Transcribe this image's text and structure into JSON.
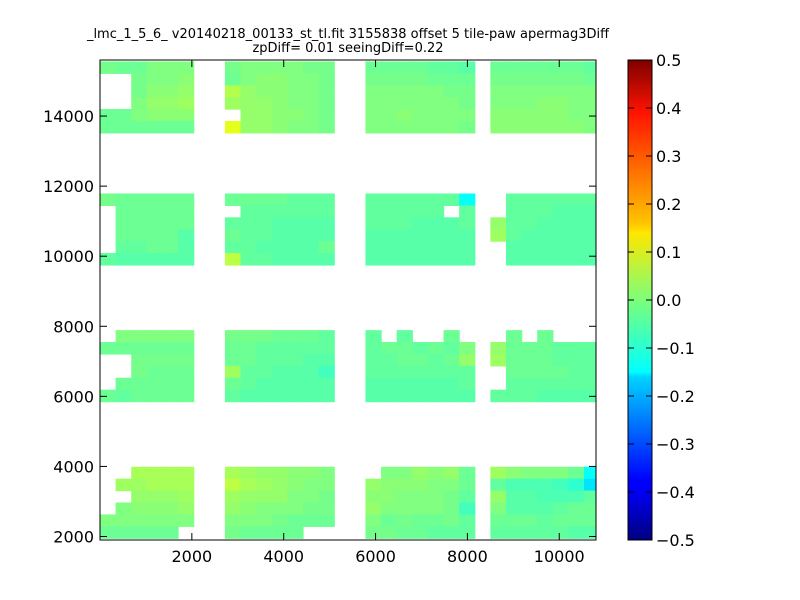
{
  "chart_data": {
    "type": "heatmap",
    "title_lines": [
      "_lmc_1_5_6_ v20140218_00133_st_tl.fit 3155838 offset 5 tile-paw apermag3Diff",
      "zpDiff= 0.01 seeingDiff=0.22"
    ],
    "xlabel": "",
    "ylabel": "",
    "xlim": [
      0,
      10800
    ],
    "ylim": [
      1900,
      15600
    ],
    "x_ticks": [
      2000,
      4000,
      6000,
      8000,
      10000
    ],
    "x_tick_labels": [
      "2000",
      "4000",
      "6000",
      "8000",
      "10000"
    ],
    "y_ticks": [
      2000,
      4000,
      6000,
      8000,
      10000,
      12000,
      14000
    ],
    "y_tick_labels": [
      "2000",
      "4000",
      "6000",
      "8000",
      "10000",
      "12000",
      "14000"
    ],
    "colorbar": {
      "colormap": "jet",
      "vmin": -0.5,
      "vmax": 0.5,
      "ticks": [
        0.5,
        0.4,
        0.3,
        0.2,
        0.1,
        0.0,
        -0.1,
        -0.2,
        -0.3,
        -0.4,
        -0.5
      ],
      "tick_labels": [
        "0.5",
        "0.4",
        "0.3",
        "0.2",
        "0.1",
        "0.0",
        "−0.1",
        "−0.2",
        "−0.3",
        "−0.4",
        "−0.5"
      ]
    },
    "cell_size": 340,
    "column_blocks": [
      {
        "x0": 0,
        "ncols": 7
      },
      {
        "x0": 2720,
        "ncols": 7
      },
      {
        "x0": 5780,
        "ncols": 7
      },
      {
        "x0": 8500,
        "ncols": 7
      }
    ],
    "row_bands": [
      {
        "y0": 1950,
        "nrows": 6
      },
      {
        "y0": 5850,
        "nrows": 6
      },
      {
        "y0": 9750,
        "nrows": 6
      },
      {
        "y0": 13520,
        "nrows": 6
      }
    ],
    "default_value": -0.02,
    "cells": [
      {
        "band": 0,
        "block": 0,
        "values": [
          [
            null,
            null,
            0.04,
            0.04,
            0.04,
            0.04,
            null
          ],
          [
            null,
            0.03,
            0.03,
            0.04,
            0.04,
            0.04,
            null
          ],
          [
            null,
            null,
            0.02,
            0.02,
            0.02,
            0.03,
            null
          ],
          [
            null,
            0.0,
            0.01,
            0.01,
            0.01,
            0.02,
            null
          ],
          [
            0.0,
            0.0,
            0.0,
            0.0,
            0.0,
            0.0,
            null
          ],
          [
            -0.02,
            -0.02,
            -0.02,
            -0.02,
            -0.02,
            null,
            null
          ]
        ]
      },
      {
        "band": 0,
        "block": 1,
        "values": [
          [
            0.04,
            0.03,
            0.02,
            0.02,
            0.01,
            0.01,
            0.0
          ],
          [
            0.06,
            0.04,
            0.03,
            0.02,
            0.01,
            0.0,
            0.0
          ],
          [
            0.03,
            0.02,
            0.02,
            0.02,
            0.0,
            0.0,
            -0.01
          ],
          [
            0.02,
            0.01,
            0.0,
            0.0,
            0.0,
            -0.01,
            -0.01
          ],
          [
            0.0,
            0.0,
            0.0,
            -0.01,
            -0.02,
            -0.02,
            -0.02
          ],
          [
            -0.01,
            -0.02,
            -0.02,
            -0.02,
            -0.02,
            null,
            null
          ]
        ]
      },
      {
        "band": 0,
        "block": 2,
        "values": [
          [
            null,
            0.0,
            0.0,
            0.02,
            0.01,
            0.02,
            -0.02
          ],
          [
            0.02,
            0.01,
            0.01,
            0.01,
            0.0,
            0.0,
            -0.02
          ],
          [
            0.01,
            0.01,
            0.0,
            0.0,
            0.0,
            -0.01,
            -0.03
          ],
          [
            0.02,
            0.0,
            0.0,
            0.0,
            0.0,
            -0.01,
            -0.06
          ],
          [
            0.0,
            -0.02,
            -0.01,
            -0.02,
            -0.02,
            -0.01,
            -0.03
          ],
          [
            -0.01,
            -0.01,
            -0.02,
            -0.02,
            -0.03,
            -0.03,
            -0.03
          ]
        ]
      },
      {
        "band": 0,
        "block": 3,
        "values": [
          [
            0.03,
            0.01,
            0.0,
            0.0,
            0.0,
            -0.02,
            -0.12
          ],
          [
            -0.03,
            -0.05,
            -0.05,
            -0.05,
            -0.06,
            -0.08,
            -0.15
          ],
          [
            0.02,
            -0.04,
            -0.04,
            -0.05,
            -0.05,
            -0.05,
            -0.03
          ],
          [
            0.0,
            -0.04,
            -0.04,
            -0.04,
            -0.03,
            -0.02,
            -0.02
          ],
          [
            -0.02,
            -0.02,
            -0.02,
            -0.03,
            -0.02,
            -0.02,
            -0.02
          ],
          [
            -0.03,
            -0.03,
            -0.03,
            -0.03,
            -0.03,
            -0.04,
            -0.04
          ]
        ]
      },
      {
        "band": 1,
        "block": 0,
        "values": [
          [
            null,
            0.0,
            0.0,
            0.0,
            0.0,
            0.0,
            null
          ],
          [
            -0.02,
            -0.02,
            -0.02,
            -0.02,
            -0.02,
            -0.02,
            null
          ],
          [
            null,
            null,
            -0.01,
            -0.01,
            -0.01,
            -0.01,
            null
          ],
          [
            null,
            null,
            -0.01,
            -0.02,
            -0.02,
            -0.02,
            null
          ],
          [
            null,
            -0.02,
            -0.02,
            -0.02,
            -0.02,
            -0.02,
            null
          ],
          [
            -0.02,
            -0.03,
            -0.02,
            -0.02,
            -0.02,
            -0.02,
            null
          ]
        ]
      },
      {
        "band": 1,
        "block": 1,
        "values": [
          [
            -0.01,
            -0.01,
            -0.01,
            -0.02,
            -0.02,
            -0.02,
            -0.03
          ],
          [
            -0.02,
            -0.02,
            -0.03,
            -0.03,
            -0.03,
            -0.03,
            -0.03
          ],
          [
            -0.02,
            -0.02,
            -0.03,
            -0.03,
            -0.03,
            -0.04,
            -0.04
          ],
          [
            0.03,
            -0.03,
            -0.03,
            -0.04,
            -0.04,
            -0.04,
            -0.06
          ],
          [
            -0.02,
            -0.03,
            -0.04,
            -0.04,
            -0.04,
            -0.04,
            -0.04
          ],
          [
            -0.03,
            -0.04,
            -0.04,
            -0.04,
            -0.04,
            -0.04,
            -0.04
          ]
        ]
      },
      {
        "band": 1,
        "block": 2,
        "values": [
          [
            -0.03,
            null,
            -0.03,
            null,
            null,
            -0.02,
            null
          ],
          [
            -0.03,
            -0.02,
            -0.02,
            -0.03,
            -0.02,
            -0.03,
            0.0
          ],
          [
            -0.03,
            -0.03,
            -0.02,
            -0.02,
            -0.03,
            -0.02,
            0.02
          ],
          [
            -0.03,
            -0.03,
            -0.03,
            -0.03,
            -0.03,
            -0.03,
            -0.03
          ],
          [
            -0.04,
            -0.04,
            -0.04,
            -0.04,
            -0.04,
            -0.04,
            -0.03
          ],
          [
            -0.04,
            -0.04,
            -0.04,
            -0.04,
            -0.04,
            -0.04,
            -0.04
          ]
        ]
      },
      {
        "band": 1,
        "block": 3,
        "values": [
          [
            null,
            -0.02,
            null,
            -0.02,
            null,
            null,
            null
          ],
          [
            0.02,
            -0.02,
            -0.02,
            -0.02,
            -0.03,
            -0.03,
            -0.03
          ],
          [
            0.03,
            -0.02,
            -0.02,
            -0.02,
            -0.03,
            -0.03,
            -0.03
          ],
          [
            null,
            -0.02,
            -0.02,
            -0.02,
            -0.02,
            -0.03,
            -0.03
          ],
          [
            null,
            -0.03,
            -0.03,
            -0.03,
            -0.03,
            -0.03,
            -0.03
          ],
          [
            -0.03,
            -0.03,
            -0.03,
            -0.04,
            -0.04,
            -0.04,
            -0.04
          ]
        ]
      },
      {
        "band": 2,
        "block": 0,
        "values": [
          [
            -0.01,
            -0.02,
            -0.02,
            -0.02,
            -0.02,
            -0.02,
            null
          ],
          [
            null,
            -0.02,
            -0.02,
            -0.02,
            -0.02,
            -0.02,
            null
          ],
          [
            null,
            -0.02,
            -0.02,
            -0.02,
            -0.02,
            -0.02,
            null
          ],
          [
            null,
            -0.02,
            -0.02,
            -0.02,
            -0.02,
            -0.04,
            null
          ],
          [
            null,
            -0.03,
            -0.03,
            -0.02,
            -0.02,
            -0.04,
            null
          ],
          [
            -0.03,
            -0.04,
            -0.04,
            -0.04,
            -0.04,
            -0.04,
            null
          ]
        ]
      },
      {
        "band": 2,
        "block": 1,
        "values": [
          [
            -0.02,
            -0.02,
            -0.02,
            -0.02,
            -0.03,
            -0.03,
            -0.03
          ],
          [
            null,
            -0.03,
            -0.03,
            -0.03,
            -0.03,
            -0.03,
            -0.03
          ],
          [
            -0.03,
            -0.03,
            -0.03,
            -0.04,
            -0.04,
            -0.04,
            -0.04
          ],
          [
            -0.02,
            -0.03,
            -0.03,
            -0.04,
            -0.04,
            -0.04,
            -0.04
          ],
          [
            -0.03,
            -0.03,
            -0.04,
            -0.04,
            -0.04,
            -0.04,
            -0.02
          ],
          [
            0.06,
            -0.03,
            -0.03,
            -0.04,
            -0.04,
            -0.04,
            -0.04
          ]
        ]
      },
      {
        "band": 2,
        "block": 2,
        "values": [
          [
            -0.03,
            -0.03,
            -0.03,
            -0.03,
            -0.03,
            -0.03,
            -0.12
          ],
          [
            -0.03,
            -0.03,
            -0.03,
            -0.03,
            -0.03,
            null,
            -0.03
          ],
          [
            -0.03,
            -0.03,
            -0.03,
            -0.04,
            -0.04,
            -0.04,
            -0.03
          ],
          [
            -0.04,
            -0.04,
            -0.04,
            -0.04,
            -0.04,
            -0.04,
            -0.04
          ],
          [
            -0.04,
            -0.04,
            -0.04,
            -0.04,
            -0.04,
            -0.04,
            -0.04
          ],
          [
            -0.04,
            -0.04,
            -0.04,
            -0.04,
            -0.04,
            -0.04,
            -0.04
          ]
        ]
      },
      {
        "band": 2,
        "block": 3,
        "values": [
          [
            null,
            -0.03,
            -0.03,
            -0.03,
            -0.03,
            -0.03,
            -0.03
          ],
          [
            null,
            -0.03,
            -0.03,
            -0.03,
            -0.04,
            -0.04,
            -0.04
          ],
          [
            0.02,
            -0.03,
            -0.03,
            -0.04,
            -0.04,
            -0.04,
            -0.04
          ],
          [
            0.03,
            -0.03,
            -0.04,
            -0.04,
            -0.04,
            -0.04,
            -0.04
          ],
          [
            null,
            -0.04,
            -0.04,
            -0.04,
            -0.04,
            -0.04,
            -0.04
          ],
          [
            null,
            -0.04,
            -0.04,
            -0.04,
            -0.04,
            -0.04,
            -0.04
          ]
        ]
      },
      {
        "band": 3,
        "block": 0,
        "values": [
          [
            -0.01,
            -0.02,
            -0.02,
            0.0,
            0.0,
            0.0,
            null
          ],
          [
            null,
            null,
            -0.01,
            0.0,
            0.0,
            0.01,
            null
          ],
          [
            null,
            null,
            -0.01,
            0.01,
            0.01,
            0.02,
            null
          ],
          [
            null,
            null,
            0.0,
            0.02,
            0.02,
            0.03,
            null
          ],
          [
            -0.02,
            -0.02,
            0.0,
            0.01,
            0.01,
            0.01,
            null
          ],
          [
            -0.02,
            -0.02,
            -0.02,
            -0.02,
            -0.02,
            -0.02,
            null
          ]
        ]
      },
      {
        "band": 3,
        "block": 1,
        "values": [
          [
            -0.01,
            0.0,
            0.0,
            0.0,
            0.0,
            -0.01,
            -0.01
          ],
          [
            -0.02,
            0.0,
            0.01,
            0.01,
            0.0,
            0.0,
            -0.01
          ],
          [
            0.05,
            0.02,
            0.01,
            0.01,
            0.0,
            0.0,
            -0.01
          ],
          [
            0.03,
            0.02,
            0.02,
            0.01,
            0.0,
            0.0,
            -0.01
          ],
          [
            null,
            0.02,
            0.02,
            0.01,
            0.01,
            0.0,
            -0.01
          ],
          [
            0.1,
            0.02,
            0.02,
            0.01,
            0.0,
            0.0,
            -0.01
          ]
        ]
      },
      {
        "band": 3,
        "block": 2,
        "values": [
          [
            -0.02,
            -0.02,
            -0.02,
            -0.02,
            -0.03,
            -0.03,
            -0.04
          ],
          [
            -0.01,
            -0.01,
            -0.01,
            -0.01,
            -0.02,
            -0.02,
            -0.02
          ],
          [
            0.0,
            0.0,
            0.0,
            0.0,
            0.0,
            -0.01,
            -0.01
          ],
          [
            0.0,
            0.0,
            0.0,
            0.0,
            0.0,
            0.0,
            -0.01
          ],
          [
            0.0,
            0.0,
            0.01,
            0.0,
            0.0,
            0.0,
            0.0
          ],
          [
            0.0,
            0.0,
            0.0,
            0.0,
            0.0,
            0.0,
            -0.01
          ]
        ]
      },
      {
        "band": 3,
        "block": 3,
        "values": [
          [
            -0.02,
            -0.02,
            -0.02,
            -0.02,
            -0.02,
            -0.02,
            -0.03
          ],
          [
            -0.01,
            -0.01,
            -0.01,
            -0.01,
            -0.01,
            -0.01,
            -0.02
          ],
          [
            0.0,
            0.0,
            0.0,
            0.0,
            0.0,
            0.0,
            0.0
          ],
          [
            0.0,
            0.0,
            0.0,
            0.01,
            0.01,
            0.0,
            0.0
          ],
          [
            0.01,
            0.01,
            0.01,
            0.01,
            0.01,
            0.0,
            0.0
          ],
          [
            0.01,
            0.01,
            0.01,
            0.01,
            0.01,
            0.01,
            0.0
          ]
        ]
      }
    ]
  }
}
